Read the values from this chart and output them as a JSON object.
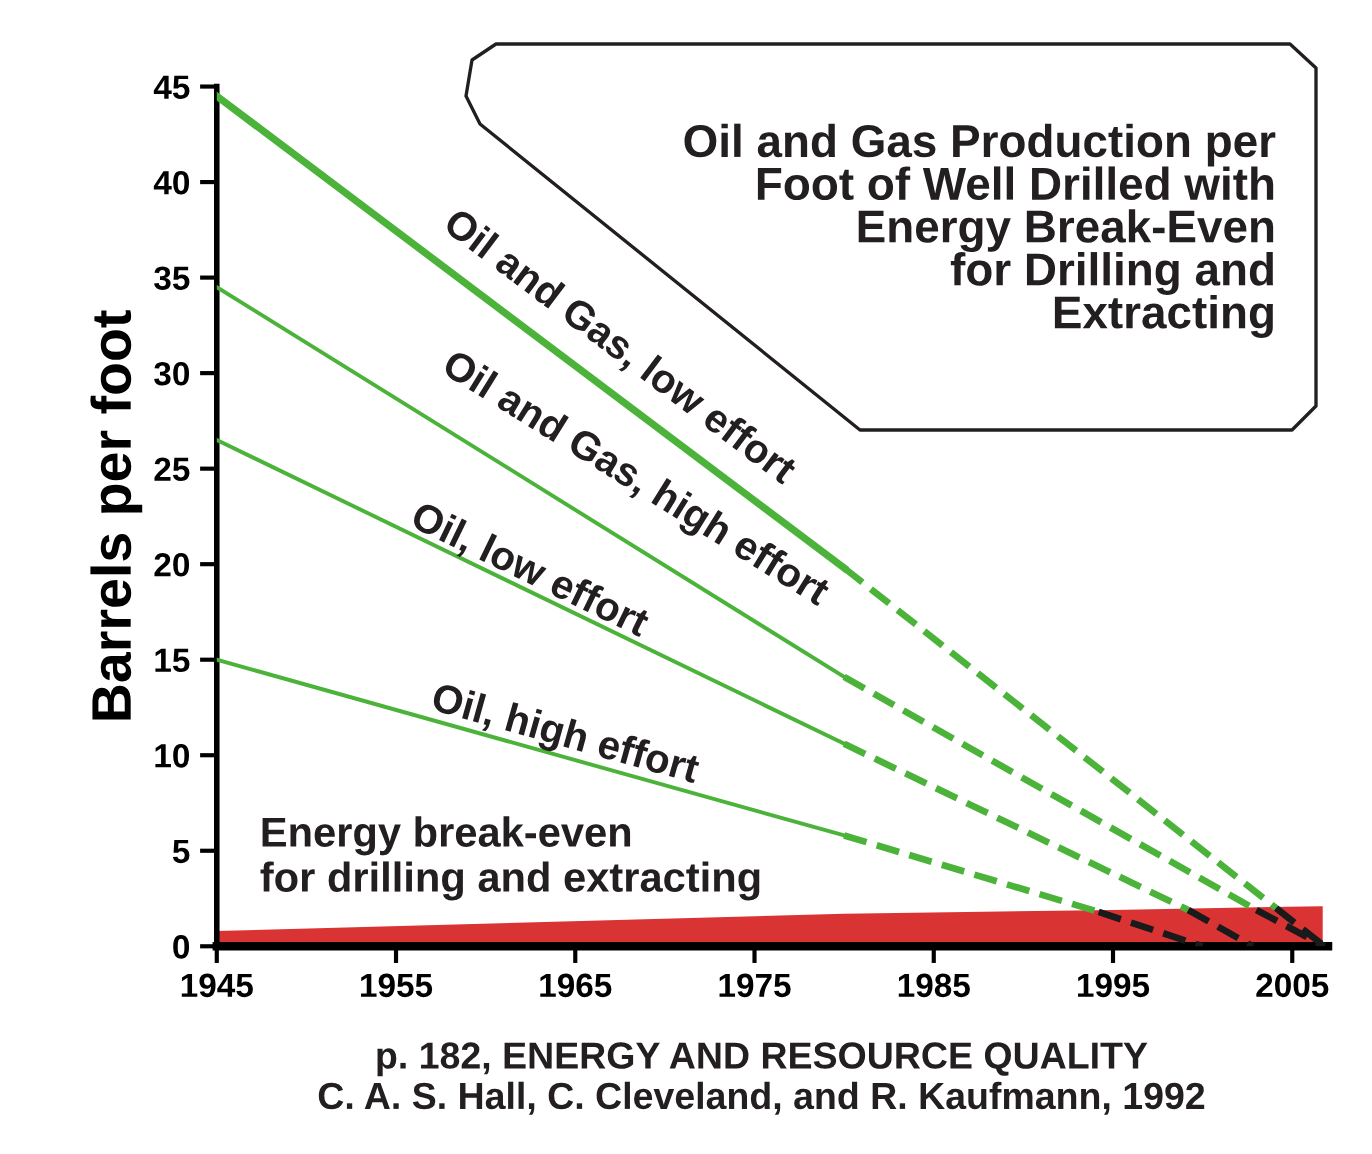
{
  "chart_data": {
    "type": "line",
    "title": "Oil and Gas Production per\nFoot of Well Drilled with\nEnergy Break-Even\nfor Drilling and\nExtracting",
    "ylabel": "Barrels per foot",
    "annotations": [
      "p. 182, ENERGY AND RESOURCE QUALITY\nC. A. S. Hall, C. Cleveland, and R. Kaufmann, 1992"
    ],
    "xlim": [
      1945,
      2007
    ],
    "xticks": [
      1945,
      1955,
      1965,
      1975,
      1985,
      1995,
      2005
    ],
    "ylim": [
      0,
      45
    ],
    "yticks": [
      0,
      5,
      10,
      15,
      20,
      25,
      30,
      35,
      40,
      45
    ],
    "grid": false,
    "marker": "none",
    "series": [
      {
        "type": "area",
        "name": "Energy break-even\nfor drilling and extracting",
        "color": "#d93333",
        "x": [
          1945,
          1980,
          1995,
          2006.7
        ],
        "values": [
          0.8,
          1.7,
          1.9,
          2.1
        ]
      },
      {
        "name": "Oil and Gas, low effort",
        "color": "#4cb33a",
        "line_style": "solid",
        "x": [
          1945,
          1980
        ],
        "values": [
          44.5,
          19.8
        ]
      },
      {
        "color": "#4cb33a",
        "line_style": "dashed",
        "x": [
          1980,
          2004.1
        ],
        "values": [
          19.8,
          2.0
        ]
      },
      {
        "color": "#1a1a1a",
        "line_style": "dashed",
        "x": [
          2004.1,
          2006.8
        ],
        "values": [
          2.0,
          0
        ]
      },
      {
        "name": "Oil and Gas, high effort",
        "color": "#4cb33a",
        "line_style": "solid",
        "x": [
          1945,
          1980
        ],
        "values": [
          34.5,
          14.1
        ]
      },
      {
        "color": "#4cb33a",
        "line_style": "dashed",
        "x": [
          1980,
          2003
        ],
        "values": [
          14.1,
          1.9
        ]
      },
      {
        "color": "#1a1a1a",
        "line_style": "dashed",
        "x": [
          2003,
          2006.8
        ],
        "values": [
          1.9,
          0
        ]
      },
      {
        "name": "Oil, low effort",
        "color": "#4cb33a",
        "line_style": "solid",
        "x": [
          1945,
          1980
        ],
        "values": [
          26.5,
          10.6
        ]
      },
      {
        "color": "#4cb33a",
        "line_style": "dashed",
        "x": [
          1980,
          1999.2
        ],
        "values": [
          10.6,
          1.9
        ]
      },
      {
        "color": "#1a1a1a",
        "line_style": "dashed",
        "x": [
          1999.2,
          2002.8
        ],
        "values": [
          1.9,
          0
        ]
      },
      {
        "name": "Oil, high effort",
        "color": "#4cb33a",
        "line_style": "solid",
        "x": [
          1945,
          1980
        ],
        "values": [
          15.0,
          5.8
        ]
      },
      {
        "color": "#4cb33a",
        "line_style": "dashed",
        "x": [
          1980,
          1994.2
        ],
        "values": [
          5.8,
          1.8
        ]
      },
      {
        "color": "#1a1a1a",
        "line_style": "dashed",
        "x": [
          1994.2,
          2000
        ],
        "values": [
          1.8,
          0
        ]
      }
    ]
  }
}
